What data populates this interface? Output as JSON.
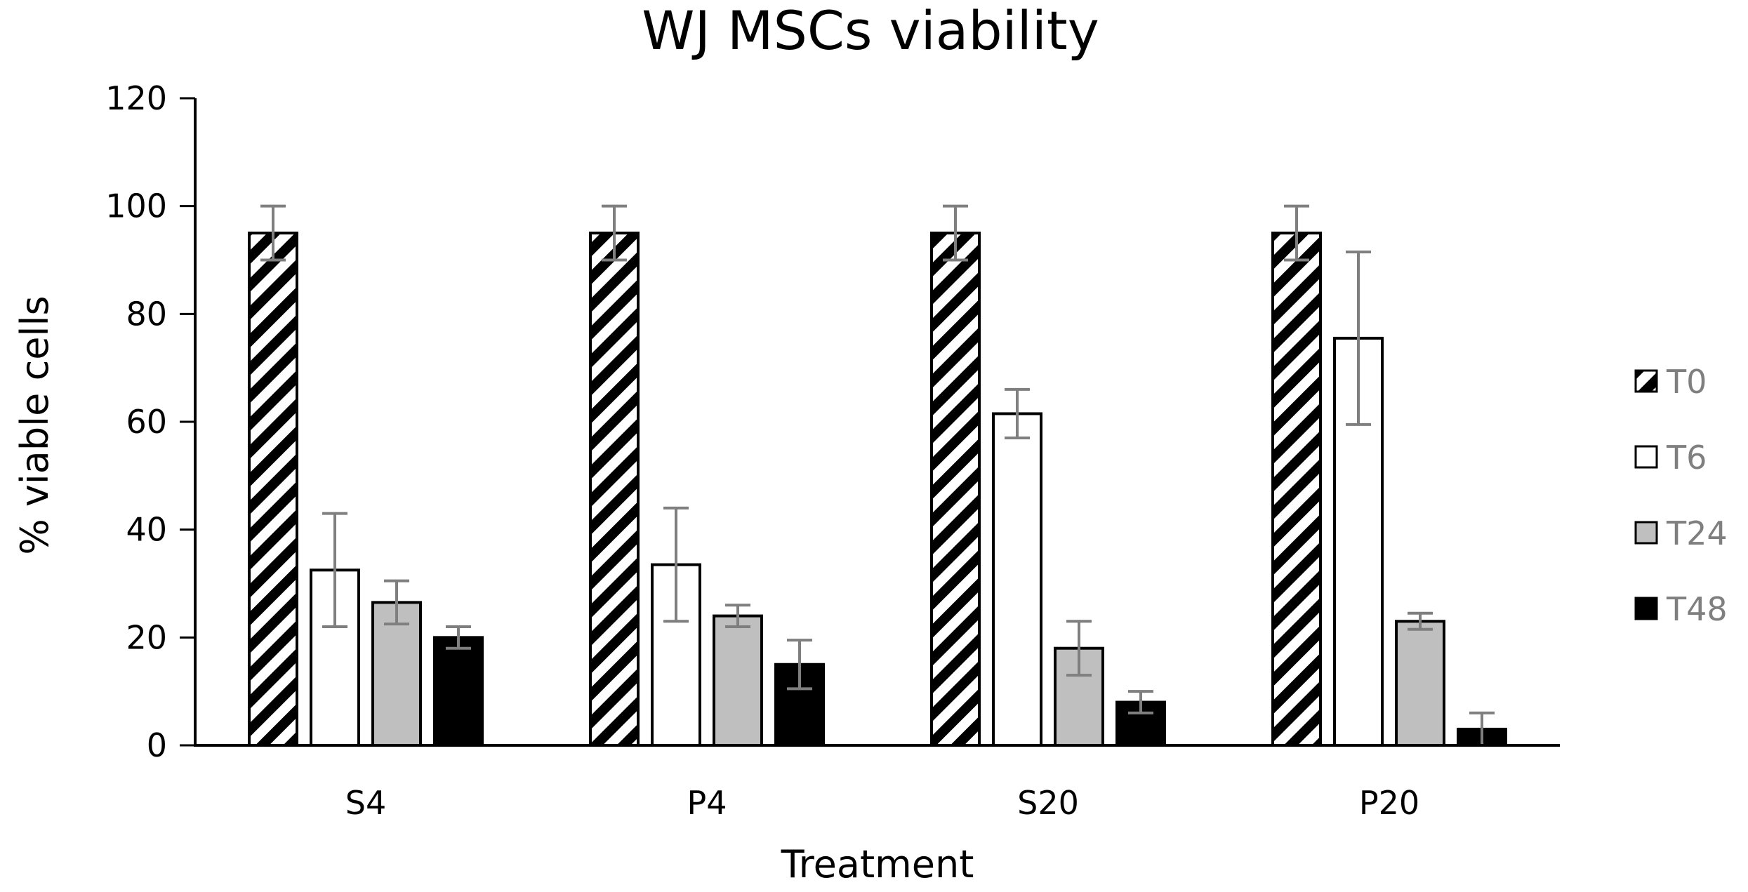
{
  "chart_data": {
    "type": "bar",
    "title": "WJ MSCs viability",
    "xlabel": "Treatment",
    "ylabel": "% viable cells",
    "ylim": [
      0,
      120
    ],
    "yticks": [
      0,
      20,
      40,
      60,
      80,
      100,
      120
    ],
    "categories": [
      "S4",
      "P4",
      "S20",
      "P20"
    ],
    "series": [
      {
        "name": "T0",
        "fill": "hatch",
        "values": [
          95,
          95,
          95,
          95
        ],
        "errors": [
          5,
          5,
          5,
          5
        ]
      },
      {
        "name": "T6",
        "fill": "#ffffff",
        "values": [
          32.5,
          33.5,
          61.5,
          75.5
        ],
        "errors": [
          10.5,
          10.5,
          4.5,
          16
        ]
      },
      {
        "name": "T24",
        "fill": "#bfbfbf",
        "values": [
          26.5,
          24,
          18,
          23
        ],
        "errors": [
          4,
          2,
          5,
          1.5
        ]
      },
      {
        "name": "T48",
        "fill": "#000000",
        "values": [
          20,
          15,
          8,
          3
        ],
        "errors": [
          2,
          4.5,
          2,
          3
        ]
      }
    ],
    "legend_position": "right",
    "grid": false,
    "colors": {
      "axis": "#000000",
      "error_bar": "#7f7f7f",
      "legend_text": "#7f7f7f"
    }
  }
}
